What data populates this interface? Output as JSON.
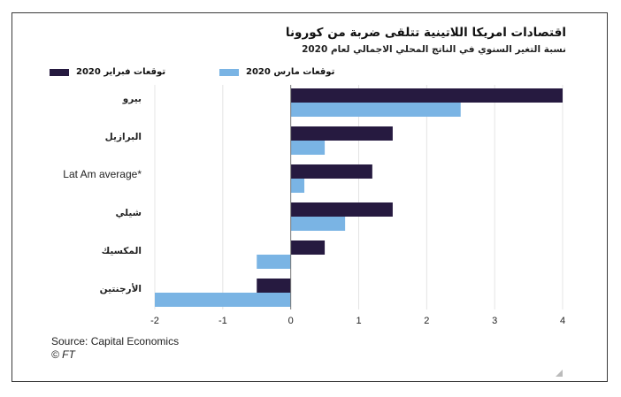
{
  "title": "اقتصادات امريكا اللاتينية تتلقى ضربة من كورونا",
  "subtitle": "نسبة التغير السنوي في الناتج المحلي الاجمالي لعام 2020",
  "source": "Source: Capital Economics",
  "copyright": "© FT",
  "colors": {
    "feb": "#261a40",
    "mar": "#7ab4e4",
    "axis": "#777777",
    "grid": "#e4e4e4"
  },
  "chart_data": {
    "type": "bar",
    "orientation": "horizontal",
    "categories": [
      "بيرو",
      "البرازيل",
      "Lat Am average*",
      "شيلي",
      "المكسيك",
      "الأرجنتين"
    ],
    "series": [
      {
        "name": "توقعات فبراير 2020",
        "values": [
          4.0,
          1.5,
          1.2,
          1.5,
          0.5,
          -0.5
        ]
      },
      {
        "name": "توقعات مارس 2020",
        "values": [
          2.5,
          0.5,
          0.2,
          0.8,
          -0.5,
          -2.0
        ]
      }
    ],
    "xlim": [
      -2,
      4
    ],
    "xticks": [
      "-2",
      "-1",
      "0",
      "1",
      "2",
      "3",
      "4"
    ],
    "grid": "vertical",
    "legend": "top"
  }
}
